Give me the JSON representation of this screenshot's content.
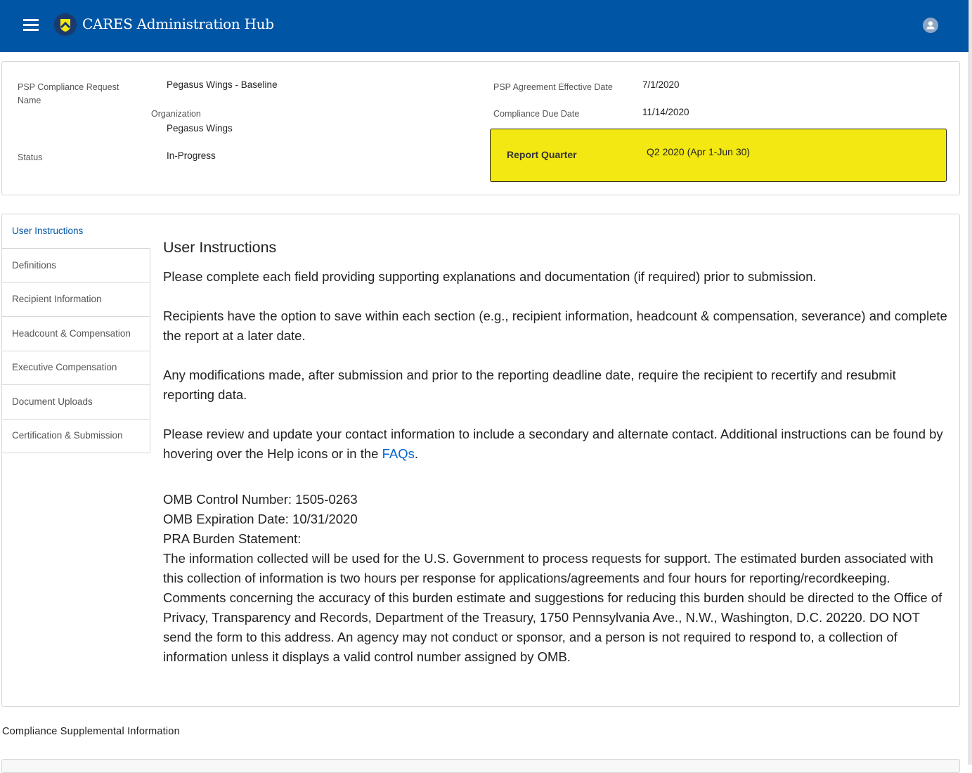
{
  "header": {
    "title": "CARES Administration Hub",
    "menu_icon": "hamburger-icon",
    "user_icon": "user-avatar-icon",
    "color": "#0055a5"
  },
  "summary": {
    "request_name_label": "PSP Compliance Request Name",
    "request_name": "Pegasus Wings - Baseline",
    "organization_label": "Organization",
    "organization": "Pegasus Wings",
    "status_label": "Status",
    "status": "In-Progress",
    "effective_date_label": "PSP Agreement Effective Date",
    "effective_date": "7/1/2020",
    "due_date_label": "Compliance Due Date",
    "due_date": "11/14/2020",
    "report_quarter_label": "Report Quarter",
    "report_quarter": "Q2 2020 (Apr 1-Jun 30)",
    "highlight_color": "#f3e812"
  },
  "tabs": [
    {
      "label": "User Instructions",
      "active": true
    },
    {
      "label": "Definitions"
    },
    {
      "label": "Recipient Information"
    },
    {
      "label": "Headcount & Compensation"
    },
    {
      "label": "Executive Compensation"
    },
    {
      "label": "Document Uploads"
    },
    {
      "label": "Certification & Submission"
    }
  ],
  "instructions": {
    "title": "User Instructions",
    "p1": "Please complete each field providing supporting explanations and documentation (if required) prior to submission.",
    "p2": "Recipients have the option to save within each section (e.g., recipient information, headcount & compensation, severance) and complete the report at a later date.",
    "p3": "Any modifications made, after submission and prior to the reporting deadline date, require the recipient to recertify and resubmit reporting data.",
    "p4": "Please review and update your contact information to include a secondary and alternate contact. Additional instructions can be found by hovering over the Help icons or in the ",
    "faq_link": "FAQs",
    "p4_end": ".",
    "omb_control": "OMB Control Number: 1505-0263",
    "omb_expiration": "OMB Expiration Date: 10/31/2020",
    "pra_title": "PRA Burden Statement:",
    "pra_text": "The information collected will be used for the U.S. Government to process requests for support. The estimated burden associated with this collection of information is two hours per response for applications/agreements and four hours for reporting/recordkeeping. Comments concerning the accuracy of this burden estimate and suggestions for reducing this burden should be directed to the Office of Privacy, Transparency and Records, Department of the Treasury, 1750 Pennsylvania Ave., N.W., Washington, D.C. 20220. DO NOT send the form to this address. An agency may not conduct or sponsor, and a person is not required to respond to, a collection of information unless it displays a valid control number assigned by OMB."
  },
  "supplemental": {
    "title": "Compliance Supplemental Information"
  }
}
